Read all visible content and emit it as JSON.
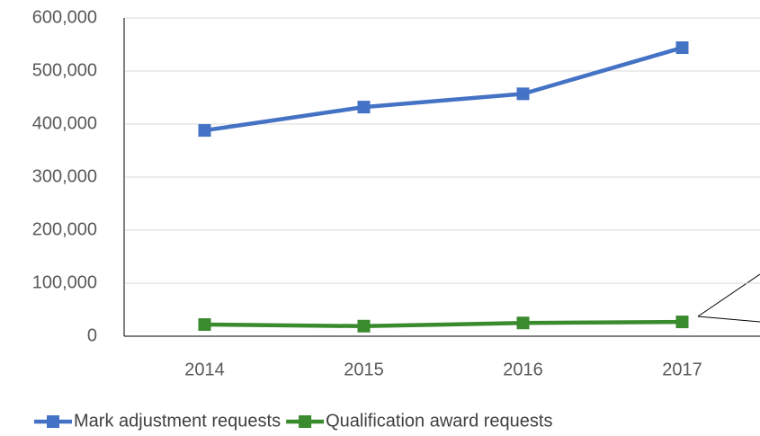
{
  "chart_data": {
    "type": "line",
    "categories": [
      "2014",
      "2015",
      "2016",
      "2017"
    ],
    "series": [
      {
        "name": "Mark adjustment requests",
        "color": "#4472c4",
        "values": [
          388000,
          432000,
          457000,
          544000
        ]
      },
      {
        "name": "Qualification award requests",
        "color": "#3a8a2e",
        "values": [
          22000,
          19000,
          25000,
          27000
        ]
      }
    ],
    "ylim": [
      0,
      600000
    ],
    "yticks": [
      0,
      {
        "value": 100000,
        "label": "100,000"
      },
      {
        "value": 200000,
        "label": "200,000"
      },
      {
        "value": 300000,
        "label": "300,000"
      },
      {
        "value": 400000,
        "label": "400,000"
      },
      {
        "value": 500000,
        "label": "500,000"
      },
      {
        "value": 600000,
        "label": "600,000"
      }
    ],
    "grid": true
  }
}
